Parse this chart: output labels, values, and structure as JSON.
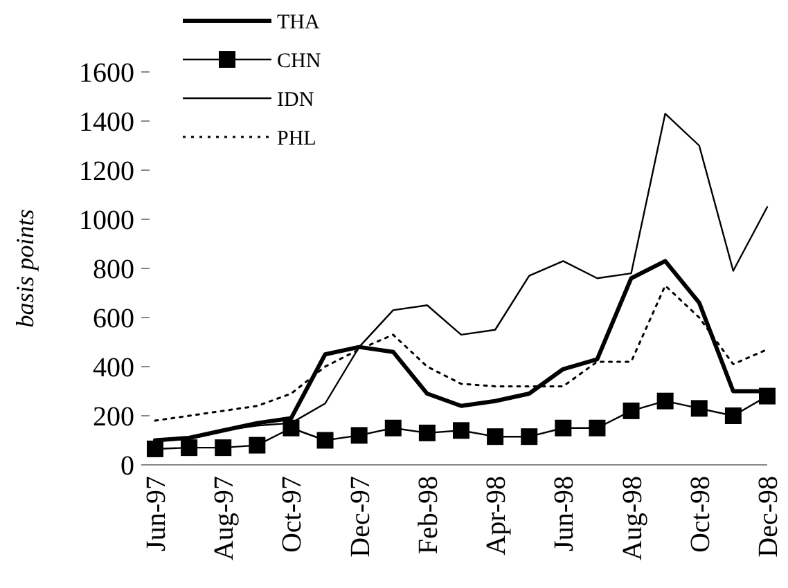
{
  "chart_data": {
    "type": "line",
    "ylabel": "basis points",
    "categories": [
      "Jun-97",
      null,
      "Aug-97",
      null,
      "Oct-97",
      null,
      "Dec-97",
      null,
      "Feb-98",
      null,
      "Apr-98",
      null,
      "Jun-98",
      null,
      "Aug-98",
      null,
      "Oct-98",
      null,
      "Dec-98"
    ],
    "ylim": [
      0,
      1600
    ],
    "yticks": [
      0,
      200,
      400,
      600,
      800,
      1000,
      1200,
      1400,
      1600
    ],
    "grid": false,
    "legend": "top left",
    "series": [
      {
        "name": "THA",
        "color": "#000000",
        "line_style": "solid",
        "marker": "none",
        "values": [
          100,
          110,
          140,
          170,
          190,
          450,
          480,
          460,
          290,
          240,
          260,
          290,
          390,
          430,
          760,
          830,
          660,
          300,
          300
        ]
      },
      {
        "name": "CHN",
        "color": "#000000",
        "line_style": "solid",
        "marker": "square",
        "values": [
          65,
          70,
          70,
          80,
          150,
          100,
          120,
          150,
          130,
          140,
          115,
          115,
          150,
          150,
          220,
          260,
          230,
          200,
          280
        ]
      },
      {
        "name": "IDN",
        "color": "#000000",
        "line_style": "solid",
        "marker": "none",
        "values": [
          100,
          105,
          140,
          160,
          170,
          250,
          480,
          630,
          650,
          530,
          550,
          770,
          830,
          760,
          780,
          1430,
          1300,
          790,
          1050
        ]
      },
      {
        "name": "PHL",
        "color": "#000000",
        "line_style": "dotted",
        "marker": "none",
        "values": [
          180,
          200,
          220,
          240,
          290,
          400,
          470,
          530,
          400,
          330,
          320,
          320,
          320,
          420,
          420,
          730,
          600,
          410,
          470
        ]
      }
    ]
  }
}
